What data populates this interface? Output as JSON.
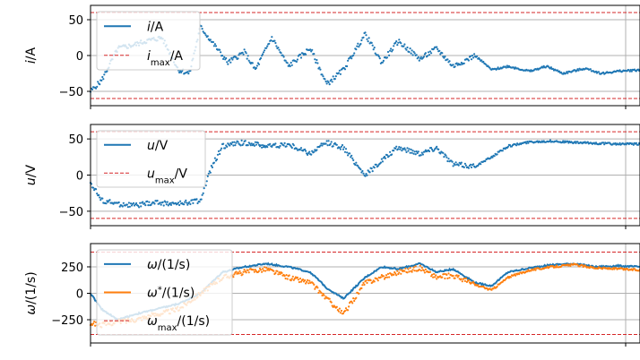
{
  "chart_data": [
    {
      "type": "scatter",
      "ylabel": "i/A",
      "ylabel_parts": [
        "i",
        "/A"
      ],
      "ylim": [
        -70,
        70
      ],
      "yticks": [
        -50,
        0,
        50
      ],
      "ytick_labels": [
        "−50",
        "0",
        "50"
      ],
      "grid": true,
      "legend_placement": "upper-left",
      "limit": 60,
      "series": [
        {
          "name": "i/A",
          "legend_parts": [
            [
              "i",
              "italic"
            ],
            [
              "/A",
              "normal"
            ]
          ],
          "color": "#1f77b4",
          "style": "dots",
          "x": [
            0,
            0.02,
            0.05,
            0.08,
            0.1,
            0.13,
            0.16,
            0.18,
            0.2,
            0.22,
            0.25,
            0.28,
            0.3,
            0.33,
            0.36,
            0.4,
            0.43,
            0.46,
            0.5,
            0.53,
            0.56,
            0.6,
            0.63,
            0.66,
            0.7,
            0.73,
            0.76,
            0.8,
            0.83,
            0.86,
            0.9,
            0.93,
            0.96,
            1.0
          ],
          "y": [
            -50,
            -35,
            10,
            15,
            20,
            25,
            -20,
            -25,
            40,
            20,
            -10,
            5,
            -20,
            25,
            -15,
            10,
            -40,
            -20,
            30,
            -10,
            20,
            -5,
            10,
            -15,
            0,
            -20,
            -15,
            -22,
            -15,
            -25,
            -18,
            -25,
            -22,
            -20
          ]
        },
        {
          "name": "i_max/A",
          "legend_parts": [
            [
              "i",
              "italic"
            ],
            [
              "max",
              "sub"
            ],
            [
              "/A",
              "normal"
            ]
          ],
          "color": "#d62728",
          "style": "dashed-limit"
        }
      ]
    },
    {
      "type": "scatter",
      "ylabel": "u/V",
      "ylabel_parts": [
        "u",
        "/V"
      ],
      "ylim": [
        -70,
        70
      ],
      "yticks": [
        -50,
        0,
        50
      ],
      "ytick_labels": [
        "−50",
        "0",
        "50"
      ],
      "grid": true,
      "legend_placement": "upper-left",
      "limit": 60,
      "series": [
        {
          "name": "u/V",
          "legend_parts": [
            [
              "u",
              "italic"
            ],
            [
              "/V",
              "normal"
            ]
          ],
          "color": "#1f77b4",
          "style": "dots",
          "x": [
            0,
            0.02,
            0.05,
            0.08,
            0.12,
            0.16,
            0.2,
            0.22,
            0.24,
            0.28,
            0.32,
            0.36,
            0.4,
            0.43,
            0.46,
            0.5,
            0.53,
            0.56,
            0.6,
            0.63,
            0.66,
            0.7,
            0.73,
            0.76,
            0.8,
            0.84,
            0.88,
            0.92,
            0.96,
            1.0
          ],
          "y": [
            -10,
            -35,
            -40,
            -42,
            -38,
            -40,
            -35,
            10,
            40,
            45,
            40,
            42,
            30,
            45,
            38,
            0,
            20,
            38,
            30,
            38,
            15,
            12,
            25,
            40,
            46,
            47,
            45,
            44,
            43,
            43
          ]
        },
        {
          "name": "u_max/V",
          "legend_parts": [
            [
              "u",
              "italic"
            ],
            [
              "max",
              "sub"
            ],
            [
              "/V",
              "normal"
            ]
          ],
          "color": "#d62728",
          "style": "dashed-limit"
        }
      ]
    },
    {
      "type": "line",
      "ylabel": "ω/(1/s)",
      "ylabel_parts": [
        "ω",
        "/(1/s)"
      ],
      "ylim": [
        -470,
        470
      ],
      "yticks": [
        -250,
        0,
        250
      ],
      "ytick_labels": [
        "−250",
        "0",
        "250"
      ],
      "grid": true,
      "legend_placement": "upper-left",
      "limit": 390,
      "series": [
        {
          "name": "ω/(1/s)",
          "legend_parts": [
            [
              "ω",
              "italic"
            ],
            [
              "/(1/s)",
              "normal"
            ]
          ],
          "color": "#1f77b4",
          "style": "line",
          "x": [
            0,
            0.02,
            0.05,
            0.08,
            0.12,
            0.16,
            0.2,
            0.24,
            0.28,
            0.32,
            0.36,
            0.4,
            0.43,
            0.46,
            0.5,
            0.53,
            0.56,
            0.6,
            0.63,
            0.66,
            0.7,
            0.73,
            0.76,
            0.8,
            0.84,
            0.88,
            0.92,
            0.96,
            1.0
          ],
          "y": [
            0,
            -150,
            -250,
            -200,
            -150,
            -100,
            0,
            200,
            250,
            280,
            250,
            200,
            50,
            -50,
            150,
            250,
            230,
            280,
            200,
            230,
            100,
            70,
            200,
            240,
            270,
            280,
            250,
            260,
            250
          ]
        },
        {
          "name": "ω*/(1/s)",
          "legend_parts": [
            [
              "ω",
              "italic"
            ],
            [
              "*",
              "sup"
            ],
            [
              "/(1/s)",
              "normal"
            ]
          ],
          "color": "#ff7f0e",
          "style": "dots",
          "x": [
            0,
            0.02,
            0.05,
            0.08,
            0.12,
            0.16,
            0.2,
            0.24,
            0.28,
            0.32,
            0.36,
            0.4,
            0.43,
            0.46,
            0.5,
            0.53,
            0.56,
            0.6,
            0.63,
            0.66,
            0.7,
            0.73,
            0.76,
            0.8,
            0.84,
            0.88,
            0.92,
            0.96,
            1.0
          ],
          "y": [
            -280,
            -300,
            -270,
            -250,
            -200,
            -150,
            0,
            150,
            200,
            230,
            150,
            100,
            -50,
            -200,
            100,
            150,
            200,
            240,
            150,
            170,
            80,
            30,
            150,
            220,
            250,
            270,
            240,
            230,
            220
          ]
        },
        {
          "name": "ω_max/(1/s)",
          "legend_parts": [
            [
              "ω",
              "italic"
            ],
            [
              "max",
              "sub"
            ],
            [
              "/(1/s)",
              "normal"
            ]
          ],
          "color": "#d62728",
          "style": "dashed-limit"
        }
      ]
    }
  ]
}
